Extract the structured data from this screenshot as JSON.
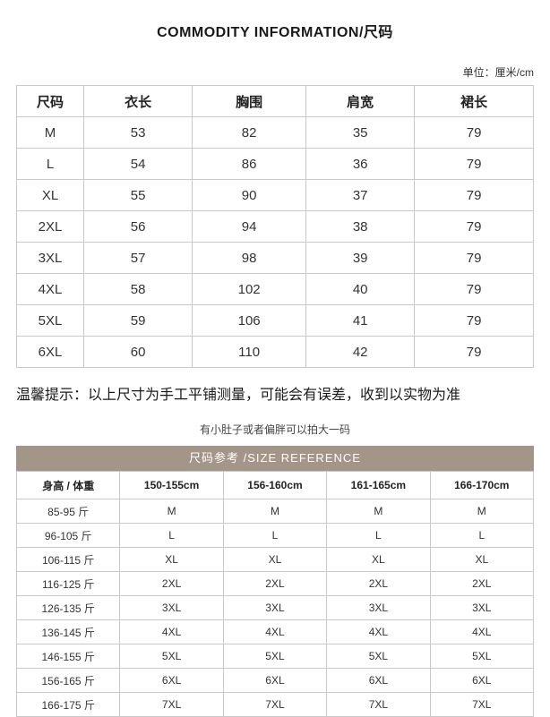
{
  "page": {
    "title": "COMMODITY INFORMATION/尺码",
    "unit_label": "单位：厘米/cm",
    "note": "温馨提示：以上尺寸为手工平铺测量，可能会有误差，收到以实物为准",
    "tip": "有小肚子或者偏胖可以拍大一码"
  },
  "size_table": {
    "headers": [
      "尺码",
      "衣长",
      "胸围",
      "肩宽",
      "裙长"
    ],
    "rows": [
      [
        "M",
        "53",
        "82",
        "35",
        "79"
      ],
      [
        "L",
        "54",
        "86",
        "36",
        "79"
      ],
      [
        "XL",
        "55",
        "90",
        "37",
        "79"
      ],
      [
        "2XL",
        "56",
        "94",
        "38",
        "79"
      ],
      [
        "3XL",
        "57",
        "98",
        "39",
        "79"
      ],
      [
        "4XL",
        "58",
        "102",
        "40",
        "79"
      ],
      [
        "5XL",
        "59",
        "106",
        "41",
        "79"
      ],
      [
        "6XL",
        "60",
        "110",
        "42",
        "79"
      ]
    ]
  },
  "reference_table": {
    "banner": "尺码参考 /SIZE REFERENCE",
    "headers": [
      "身高 / 体重",
      "150-155cm",
      "156-160cm",
      "161-165cm",
      "166-170cm"
    ],
    "rows": [
      [
        "85-95 斤",
        "M",
        "M",
        "M",
        "M"
      ],
      [
        "96-105 斤",
        "L",
        "L",
        "L",
        "L"
      ],
      [
        "106-115 斤",
        "XL",
        "XL",
        "XL",
        "XL"
      ],
      [
        "116-125 斤",
        "2XL",
        "2XL",
        "2XL",
        "2XL"
      ],
      [
        "126-135 斤",
        "3XL",
        "3XL",
        "3XL",
        "3XL"
      ],
      [
        "136-145 斤",
        "4XL",
        "4XL",
        "4XL",
        "4XL"
      ],
      [
        "146-155 斤",
        "5XL",
        "5XL",
        "5XL",
        "5XL"
      ],
      [
        "156-165 斤",
        "6XL",
        "6XL",
        "6XL",
        "6XL"
      ],
      [
        "166-175 斤",
        "7XL",
        "7XL",
        "7XL",
        "7XL"
      ]
    ]
  },
  "colors": {
    "banner_bg": "#a39689",
    "banner_text": "#ffffff",
    "table_border": "#c9c9c9",
    "text": "#333333"
  }
}
